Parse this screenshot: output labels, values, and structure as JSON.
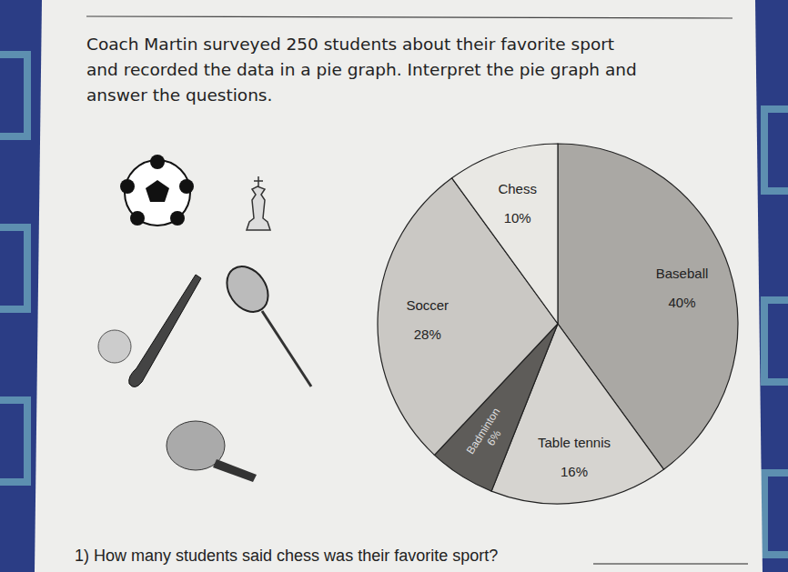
{
  "chart_data": {
    "type": "pie",
    "categories": [
      "Baseball",
      "Table tennis",
      "Badminton",
      "Soccer",
      "Chess"
    ],
    "values": [
      40,
      16,
      6,
      28,
      10
    ],
    "value_labels": [
      "40%",
      "16%",
      "6%",
      "28%",
      "10%"
    ],
    "colors": [
      "#aaa8a4",
      "#d6d4d0",
      "#5e5c59",
      "#cac8c4",
      "#e9e8e4"
    ],
    "data_labels": true
  },
  "intro": [
    "Coach Martin surveyed 250 students about their favorite sport",
    "and recorded the data in a pie graph. Interpret the pie graph and",
    "answer the questions."
  ],
  "questions": [
    "1) How many students said chess was their favorite sport?"
  ]
}
